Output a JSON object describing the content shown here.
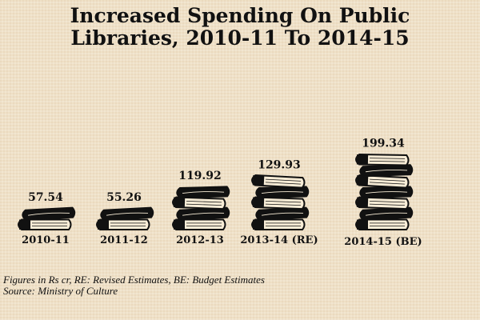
{
  "title_lines": [
    "Increased Spending On Public",
    "Libraries, 2010-11 To 2014-15"
  ],
  "chart_data": {
    "type": "bar",
    "title": "Increased Spending On Public Libraries, 2010-11 To 2014-15",
    "categories": [
      "2010-11",
      "2011-12",
      "2012-13",
      "2013-14 (RE)",
      "2014-15 (BE)"
    ],
    "values": [
      57.54,
      55.26,
      119.92,
      129.93,
      199.34
    ],
    "value_labels": [
      "57.54",
      "55.26",
      "119.92",
      "129.93",
      "199.34"
    ],
    "xlabel": "",
    "ylabel": "",
    "grid": false,
    "mark_style": "stacked-book-pictogram",
    "mark_color": "#111111"
  },
  "footer": {
    "note": "Figures in Rs cr, RE: Revised Estimates, BE: Budget Estimates",
    "source": "Source: Ministry of Culture"
  }
}
